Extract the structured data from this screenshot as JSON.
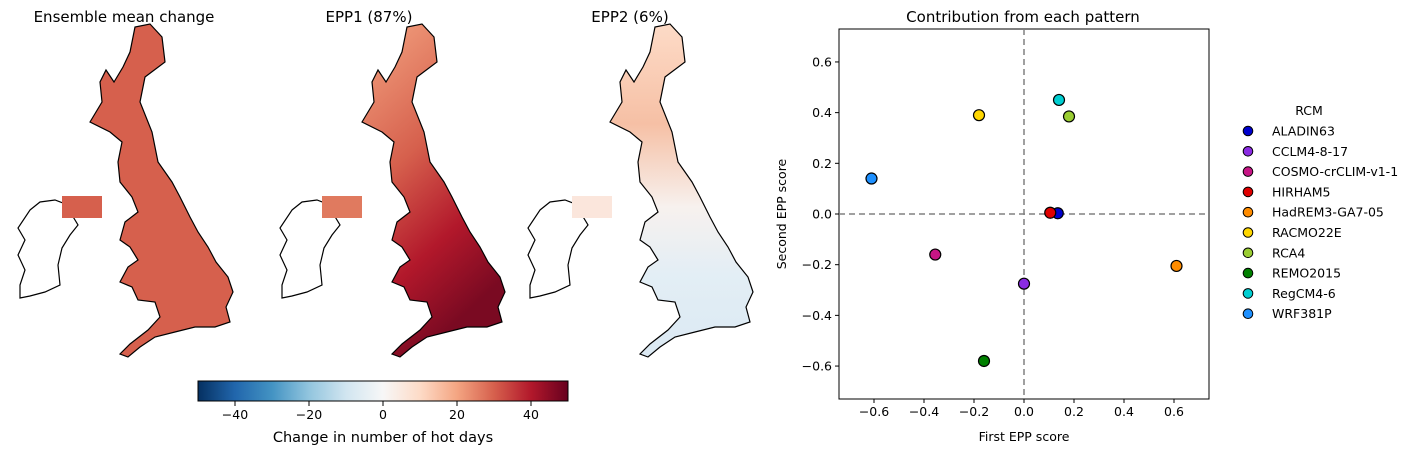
{
  "maps": {
    "titles": [
      "Ensemble mean change",
      "EPP1 (87%)",
      "EPP2 (6%)"
    ],
    "colorbar": {
      "label": "Change in number of hot days",
      "ticks": [
        -40,
        -20,
        0,
        20,
        40
      ],
      "range": [
        -50,
        50
      ],
      "colormap": "RdBu_r"
    }
  },
  "chart_data": {
    "type": "scatter",
    "title": "Contribution from each pattern",
    "xlabel": "First EPP score",
    "ylabel": "Second EPP score",
    "xlim": [
      -0.74,
      0.74
    ],
    "ylim": [
      -0.73,
      0.73
    ],
    "xticks": [
      -0.6,
      -0.4,
      -0.2,
      0.0,
      0.2,
      0.4,
      0.6
    ],
    "yticks": [
      -0.6,
      -0.4,
      -0.2,
      0.0,
      0.2,
      0.4,
      0.6
    ],
    "reference_lines": {
      "x": 0,
      "y": 0,
      "style": "dashed",
      "color": "#808080"
    },
    "legend": {
      "title": "RCM",
      "position": "outside-right"
    },
    "series": [
      {
        "name": "ALADIN63",
        "color": "#0000cd",
        "x": 0.135,
        "y": 0.003
      },
      {
        "name": "CCLM4-8-17",
        "color": "#8a2be2",
        "x": 0.0,
        "y": -0.275
      },
      {
        "name": "COSMO-crCLIM-v1-1",
        "color": "#c71585",
        "x": -0.355,
        "y": -0.16
      },
      {
        "name": "HIRHAM5",
        "color": "#e00000",
        "x": 0.105,
        "y": 0.005
      },
      {
        "name": "HadREM3-GA7-05",
        "color": "#ff8c00",
        "x": 0.61,
        "y": -0.205
      },
      {
        "name": "RACMO22E",
        "color": "#ffd700",
        "x": -0.18,
        "y": 0.39
      },
      {
        "name": "RCA4",
        "color": "#9acd32",
        "x": 0.18,
        "y": 0.385
      },
      {
        "name": "REMO2015",
        "color": "#008000",
        "x": -0.16,
        "y": -0.58
      },
      {
        "name": "RegCM4-6",
        "color": "#00ced1",
        "x": 0.14,
        "y": 0.45
      },
      {
        "name": "WRF381P",
        "color": "#1e90ff",
        "x": -0.61,
        "y": 0.14
      }
    ]
  }
}
